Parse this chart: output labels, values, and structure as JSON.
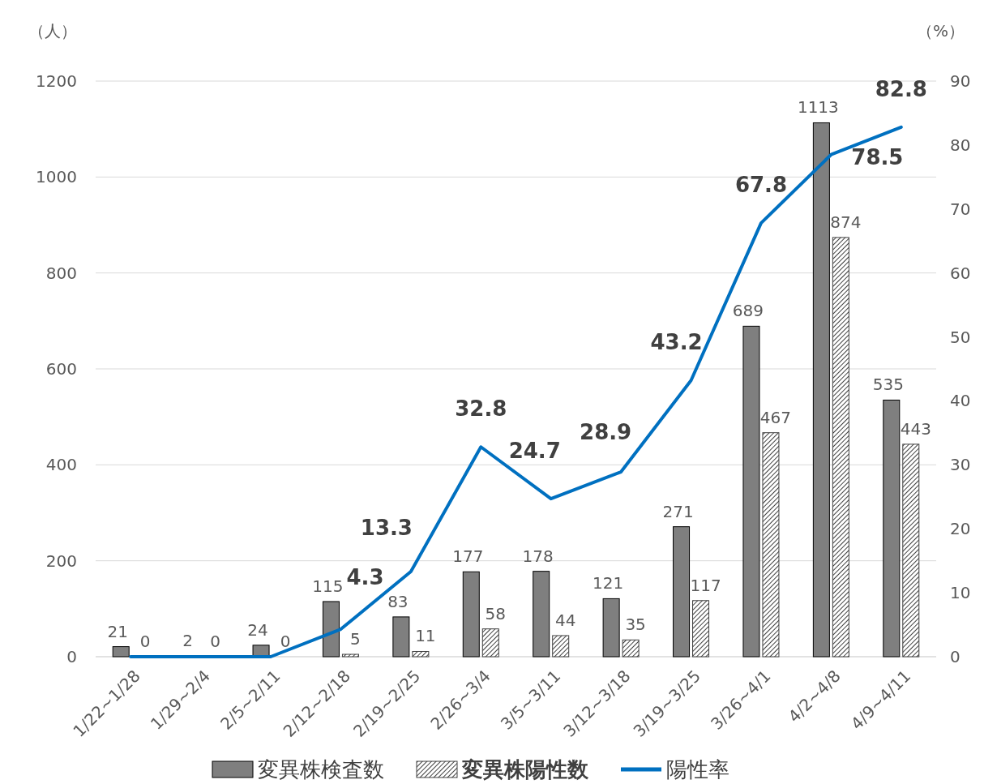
{
  "chart_data": {
    "type": "bar",
    "categories": [
      "1/22~1/28",
      "1/29~2/4",
      "2/5~2/11",
      "2/12~2/18",
      "2/19~2/25",
      "2/26~3/4",
      "3/5~3/11",
      "3/12~3/18",
      "3/19~3/25",
      "3/26~4/1",
      "4/2~4/8",
      "4/9~4/11"
    ],
    "series": [
      {
        "name": "変異株検査数",
        "color": "#7f7f7f",
        "values": [
          21,
          2,
          24,
          115,
          83,
          177,
          178,
          121,
          271,
          689,
          1113,
          535
        ],
        "value_labels": [
          "21",
          "2",
          "24",
          "115",
          "83",
          "177",
          "178",
          "121",
          "271",
          "689",
          "1113",
          "535"
        ]
      },
      {
        "name": "変異株陽性数",
        "color": "#404040",
        "values": [
          0,
          0,
          0,
          5,
          11,
          58,
          44,
          35,
          117,
          467,
          874,
          443
        ],
        "value_labels": [
          "0",
          "0",
          "0",
          "5",
          "11",
          "58",
          "44",
          "35",
          "117",
          "467",
          "874",
          "443"
        ]
      },
      {
        "name": "陽性率",
        "type": "line",
        "axis": "y2",
        "color": "#0070c0",
        "values": [
          0,
          0,
          0,
          4.3,
          13.3,
          32.8,
          24.7,
          28.9,
          43.2,
          67.8,
          78.5,
          82.8
        ],
        "value_labels": [
          null,
          null,
          null,
          "4.3",
          "13.3",
          "32.8",
          "24.7",
          "28.9",
          "43.2",
          "67.8",
          "78.5",
          "82.8"
        ]
      }
    ],
    "ylabel": "（人）",
    "y2label": "（%）",
    "ylim": [
      0,
      1200
    ],
    "yticks": [
      0,
      200,
      400,
      600,
      800,
      1000,
      1200
    ],
    "y2lim": [
      0,
      90
    ],
    "y2ticks": [
      0,
      10,
      20,
      30,
      40,
      50,
      60,
      70,
      80,
      90
    ],
    "grid": "y",
    "legend": "bottom",
    "marker": "none",
    "line_style": "solid"
  }
}
